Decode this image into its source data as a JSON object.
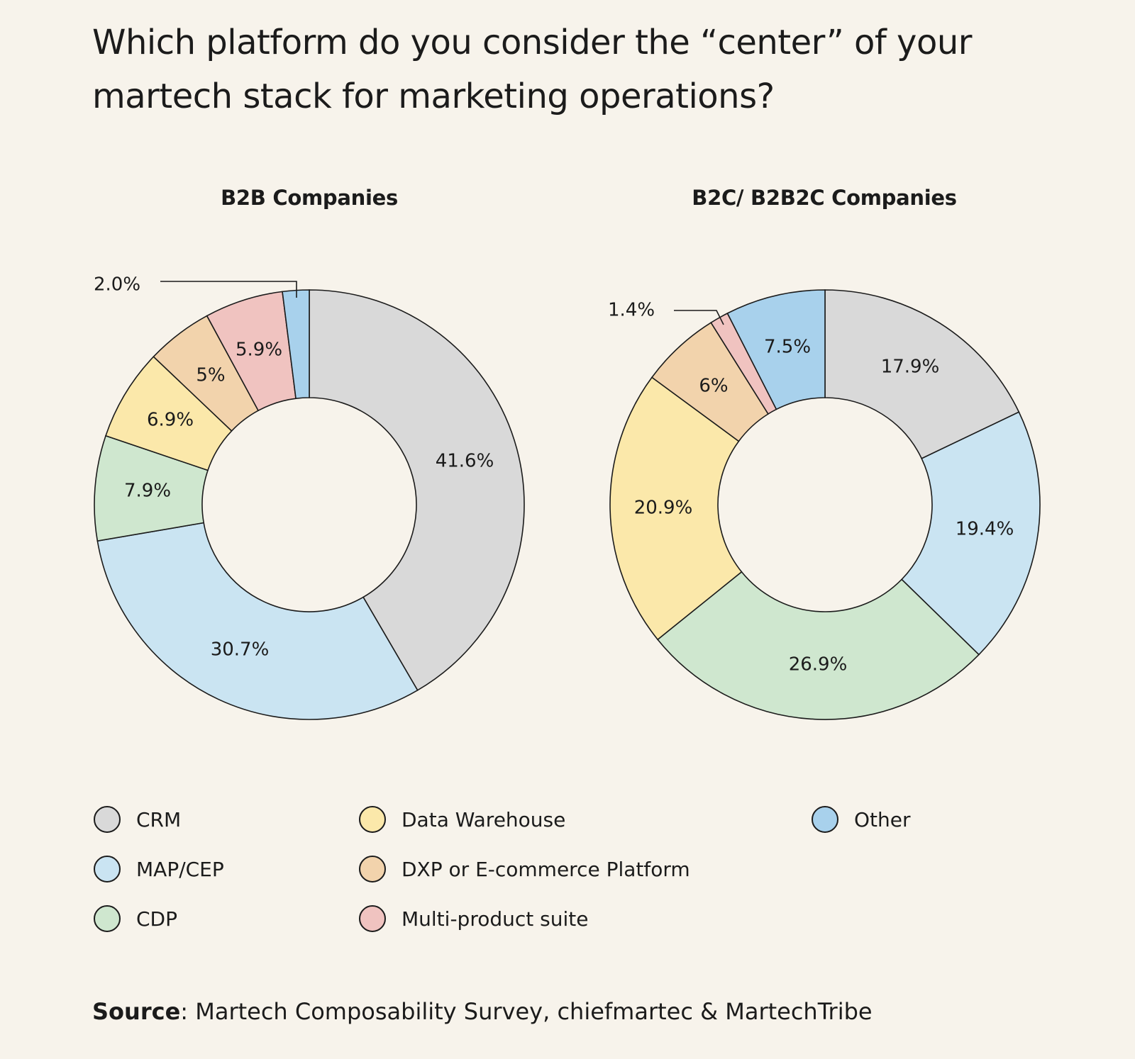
{
  "title": "Which platform do you consider the “center” of your martech stack for marketing operations?",
  "legend": [
    {
      "label": "CRM",
      "color": "#d9d9d9"
    },
    {
      "label": "MAP/CEP",
      "color": "#cae4f2"
    },
    {
      "label": "CDP",
      "color": "#cfe7cf"
    },
    {
      "label": "Data Warehouse",
      "color": "#fbe8aa"
    },
    {
      "label": "DXP or E-commerce Platform",
      "color": "#f2d3ac"
    },
    {
      "label": "Multi-product suite",
      "color": "#f0c3c0"
    },
    {
      "label": "Other",
      "color": "#a8d1ec"
    }
  ],
  "source": {
    "label": "Source",
    "text": ": Martech Composability Survey, chiefmartec & MartechTribe"
  },
  "chart_data": [
    {
      "type": "pie",
      "donut": true,
      "title": "B2B Companies",
      "categories": [
        "CRM",
        "MAP/CEP",
        "CDP",
        "Data Warehouse",
        "DXP or E-commerce Platform",
        "Multi-product suite",
        "Other"
      ],
      "values": [
        41.6,
        30.7,
        7.9,
        6.9,
        5,
        5.9,
        2.0
      ],
      "labels": [
        "41.6%",
        "30.7%",
        "7.9%",
        "6.9%",
        "5%",
        "5.9%",
        "2.0%"
      ],
      "callout_segment": "Other"
    },
    {
      "type": "pie",
      "donut": true,
      "title": "B2C/ B2B2C Companies",
      "categories": [
        "CRM",
        "MAP/CEP",
        "CDP",
        "Data Warehouse",
        "DXP or E-commerce Platform",
        "Multi-product suite",
        "Other"
      ],
      "values": [
        17.9,
        19.4,
        26.9,
        20.9,
        6,
        1.4,
        7.5
      ],
      "labels": [
        "17.9%",
        "19.4%",
        "26.9%",
        "20.9%",
        "6%",
        "1.4%",
        "7.5%"
      ],
      "callout_segment": "Multi-product suite"
    }
  ]
}
